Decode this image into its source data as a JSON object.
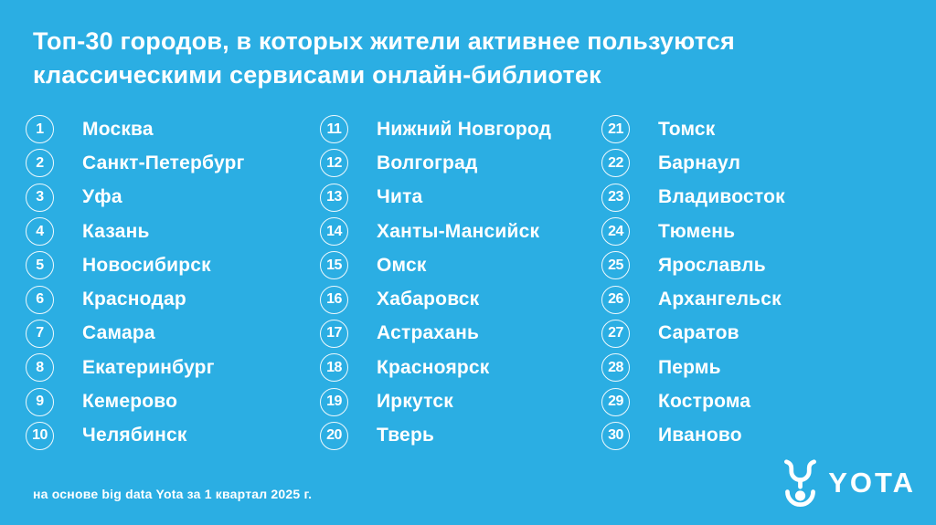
{
  "theme": {
    "background": "#2BAEE3",
    "text_color": "#FFFFFF"
  },
  "title": "Топ-30 городов, в которых жители активнее пользуются классическими сервисами онлайн-библиотек",
  "columns": [
    {
      "items": [
        {
          "rank": "1",
          "city": "Москва"
        },
        {
          "rank": "2",
          "city": "Санкт-Петербург"
        },
        {
          "rank": "3",
          "city": "Уфа"
        },
        {
          "rank": "4",
          "city": "Казань"
        },
        {
          "rank": "5",
          "city": "Новосибирск"
        },
        {
          "rank": "6",
          "city": "Краснодар"
        },
        {
          "rank": "7",
          "city": "Самара"
        },
        {
          "rank": "8",
          "city": "Екатеринбург"
        },
        {
          "rank": "9",
          "city": "Кемерово"
        },
        {
          "rank": "10",
          "city": "Челябинск"
        }
      ]
    },
    {
      "items": [
        {
          "rank": "11",
          "city": "Нижний Новгород"
        },
        {
          "rank": "12",
          "city": "Волгоград"
        },
        {
          "rank": "13",
          "city": "Чита"
        },
        {
          "rank": "14",
          "city": "Ханты-Мансийск"
        },
        {
          "rank": "15",
          "city": "Омск"
        },
        {
          "rank": "16",
          "city": "Хабаровск"
        },
        {
          "rank": "17",
          "city": "Астрахань"
        },
        {
          "rank": "18",
          "city": "Красноярск"
        },
        {
          "rank": "19",
          "city": "Иркутск"
        },
        {
          "rank": "20",
          "city": "Тверь"
        }
      ]
    },
    {
      "items": [
        {
          "rank": "21",
          "city": "Томск"
        },
        {
          "rank": "22",
          "city": "Барнаул"
        },
        {
          "rank": "23",
          "city": "Владивосток"
        },
        {
          "rank": "24",
          "city": "Тюмень"
        },
        {
          "rank": "25",
          "city": "Ярославль"
        },
        {
          "rank": "26",
          "city": "Архангельск"
        },
        {
          "rank": "27",
          "city": "Саратов"
        },
        {
          "rank": "28",
          "city": "Пермь"
        },
        {
          "rank": "29",
          "city": "Кострома"
        },
        {
          "rank": "30",
          "city": "Иваново"
        }
      ]
    }
  ],
  "footer": {
    "source": "на основе big data Yota за 1 квартал 2025 г."
  },
  "logo": {
    "wordmark": "YOTA",
    "symbol": "yota-logo-symbol"
  }
}
